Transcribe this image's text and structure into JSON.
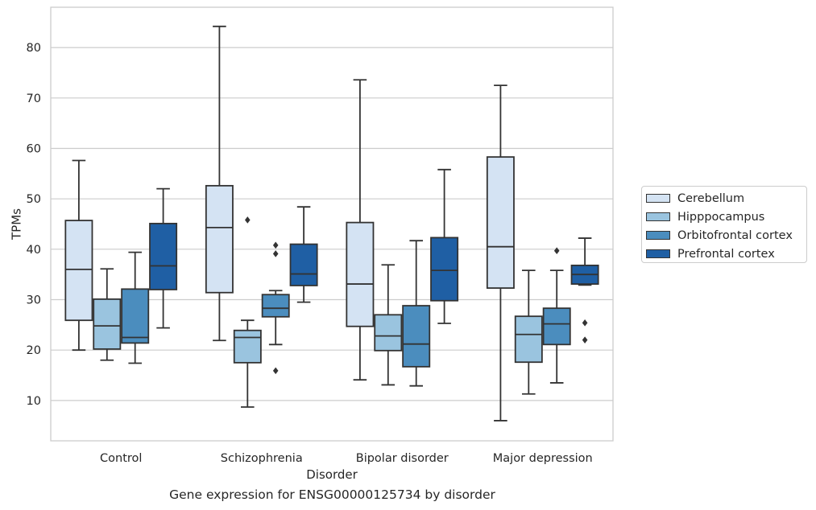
{
  "caption": "Gene expression for ENSG00000125734 by disorder",
  "chart_data": {
    "type": "box",
    "xlabel": "Disorder",
    "ylabel": "TPMs",
    "ylim": [
      2,
      88
    ],
    "yticks": [
      10,
      20,
      30,
      40,
      50,
      60,
      70,
      80
    ],
    "grid": true,
    "legend_position": "right",
    "categories": [
      "Control",
      "Schizophrenia",
      "Bipolar disorder",
      "Major depression"
    ],
    "series": [
      {
        "name": "Cerebellum",
        "color": "#d4e3f3",
        "boxes": [
          {
            "whislo": 20.0,
            "q1": 25.9,
            "med": 36.0,
            "q3": 45.7,
            "whishi": 57.6,
            "fliers": []
          },
          {
            "whislo": 21.9,
            "q1": 31.4,
            "med": 44.3,
            "q3": 52.6,
            "whishi": 84.2,
            "fliers": []
          },
          {
            "whislo": 14.1,
            "q1": 24.7,
            "med": 33.1,
            "q3": 45.3,
            "whishi": 73.6,
            "fliers": []
          },
          {
            "whislo": 6.0,
            "q1": 32.3,
            "med": 40.5,
            "q3": 58.3,
            "whishi": 72.5,
            "fliers": []
          }
        ]
      },
      {
        "name": "Hipppocampus",
        "color": "#9ac4df",
        "boxes": [
          {
            "whislo": 18.0,
            "q1": 20.2,
            "med": 24.8,
            "q3": 30.1,
            "whishi": 36.1,
            "fliers": []
          },
          {
            "whislo": 8.7,
            "q1": 17.5,
            "med": 22.5,
            "q3": 23.9,
            "whishi": 25.9,
            "fliers": [
              45.8
            ]
          },
          {
            "whislo": 13.1,
            "q1": 19.9,
            "med": 22.8,
            "q3": 27.0,
            "whishi": 36.9,
            "fliers": []
          },
          {
            "whislo": 11.3,
            "q1": 17.6,
            "med": 23.1,
            "q3": 26.7,
            "whishi": 35.8,
            "fliers": []
          }
        ]
      },
      {
        "name": "Orbitofrontal cortex",
        "color": "#4b8dbe",
        "boxes": [
          {
            "whislo": 17.4,
            "q1": 21.4,
            "med": 22.5,
            "q3": 32.1,
            "whishi": 39.4,
            "fliers": []
          },
          {
            "whislo": 21.1,
            "q1": 26.6,
            "med": 28.3,
            "q3": 31.0,
            "whishi": 31.8,
            "fliers": [
              15.9,
              39.1,
              40.8
            ]
          },
          {
            "whislo": 12.9,
            "q1": 16.7,
            "med": 21.2,
            "q3": 28.8,
            "whishi": 41.7,
            "fliers": []
          },
          {
            "whislo": 13.5,
            "q1": 21.1,
            "med": 25.2,
            "q3": 28.3,
            "whishi": 35.8,
            "fliers": [
              39.7
            ]
          }
        ]
      },
      {
        "name": "Prefrontal cortex",
        "color": "#1f5fa4",
        "boxes": [
          {
            "whislo": 24.4,
            "q1": 32.0,
            "med": 36.7,
            "q3": 45.1,
            "whishi": 52.0,
            "fliers": []
          },
          {
            "whislo": 29.5,
            "q1": 32.8,
            "med": 35.1,
            "q3": 41.0,
            "whishi": 48.4,
            "fliers": []
          },
          {
            "whislo": 25.3,
            "q1": 29.8,
            "med": 35.8,
            "q3": 42.3,
            "whishi": 55.8,
            "fliers": []
          },
          {
            "whislo": 32.9,
            "q1": 33.1,
            "med": 35.0,
            "q3": 36.8,
            "whishi": 42.2,
            "fliers": [
              22.0,
              25.4
            ]
          }
        ]
      }
    ]
  }
}
